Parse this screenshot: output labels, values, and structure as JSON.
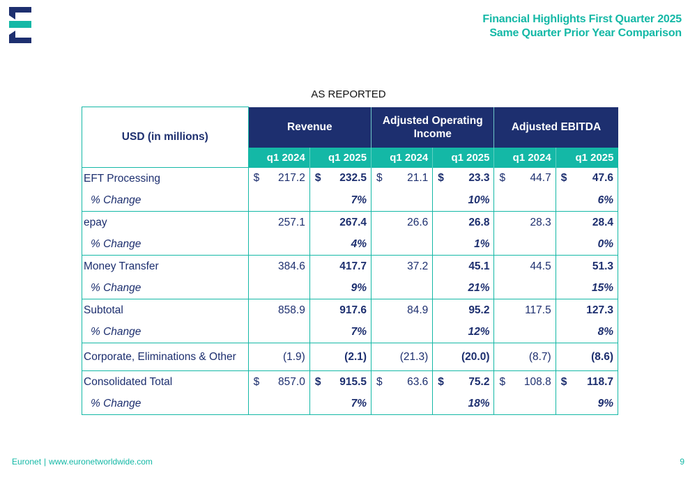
{
  "colors": {
    "navy": "#1d2f6f",
    "teal": "#14b8a6"
  },
  "header": {
    "title_line1": "Financial Highlights First Quarter 2025",
    "title_line2": "Same Quarter Prior Year Comparison",
    "logo_icon": "euronet-e-logo-icon"
  },
  "section_label": "AS REPORTED",
  "table": {
    "corner_label": "USD (in millions)",
    "groups": [
      "Revenue",
      "Adjusted Operating Income",
      "Adjusted EBITDA"
    ],
    "years": [
      "q1 2024",
      "q1 2025",
      "q1 2024",
      "q1 2025",
      "q1 2024",
      "q1 2025"
    ],
    "currency_symbol": "$",
    "rows": [
      {
        "label": "EFT Processing",
        "values": [
          "217.2",
          "232.5",
          "21.1",
          "23.3",
          "44.7",
          "47.6"
        ],
        "dollar": true
      },
      {
        "label": "% Change",
        "values": [
          "",
          "7%",
          "",
          "10%",
          "",
          "6%"
        ],
        "pct": true
      },
      {
        "label": "epay",
        "values": [
          "257.1",
          "267.4",
          "26.6",
          "26.8",
          "28.3",
          "28.4"
        ]
      },
      {
        "label": "% Change",
        "values": [
          "",
          "4%",
          "",
          "1%",
          "",
          "0%"
        ],
        "pct": true
      },
      {
        "label": "Money Transfer",
        "values": [
          "384.6",
          "417.7",
          "37.2",
          "45.1",
          "44.5",
          "51.3"
        ]
      },
      {
        "label": "% Change",
        "values": [
          "",
          "9%",
          "",
          "21%",
          "",
          "15%"
        ],
        "pct": true
      },
      {
        "label": "Subtotal",
        "values": [
          "858.9",
          "917.6",
          "84.9",
          "95.2",
          "117.5",
          "127.3"
        ]
      },
      {
        "label": "% Change",
        "values": [
          "",
          "7%",
          "",
          "12%",
          "",
          "8%"
        ],
        "pct": true
      },
      {
        "label": "Corporate, Eliminations & Other",
        "values": [
          "(1.9)",
          "(2.1)",
          "(21.3)",
          "(20.0)",
          "(8.7)",
          "(8.6)"
        ]
      },
      {
        "label": "Consolidated Total",
        "values": [
          "857.0",
          "915.5",
          "63.6",
          "75.2",
          "108.8",
          "118.7"
        ],
        "dollar": true
      },
      {
        "label": "% Change",
        "values": [
          "",
          "7%",
          "",
          "18%",
          "",
          "9%"
        ],
        "pct": true
      }
    ]
  },
  "footer": {
    "brand": "Euronet",
    "separator": "|",
    "website": "www.euronetworldwide.com",
    "page_number": "9"
  }
}
